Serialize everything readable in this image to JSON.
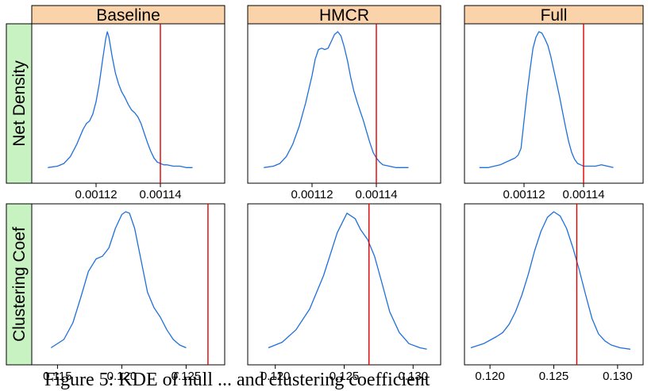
{
  "caption": "Figure 5: KDE of null ... and clustering coefficient",
  "colors": {
    "curve": "#1f6fdc",
    "observed": "#e00000",
    "strip": "#fbd3aa",
    "row_strip": "#c9f2c2",
    "frame": "#000000"
  },
  "chart_data": [
    {
      "type": "line",
      "column": "Baseline",
      "row": "Net Density",
      "xlim": [
        0.0011,
        0.00116
      ],
      "ylim": [
        0,
        1
      ],
      "xticks": [
        0.00112,
        0.00114
      ],
      "xtick_labels": [
        "0.00112",
        "0.00114"
      ],
      "observed": 0.00114,
      "x": [
        0.001105,
        0.001108,
        0.00111,
        0.001112,
        0.001114,
        0.001116,
        0.001117,
        0.001118,
        0.001119,
        0.00112,
        0.001121,
        0.001122,
        0.001123,
        0.0011235,
        0.001124,
        0.001125,
        0.001126,
        0.001127,
        0.001128,
        0.001129,
        0.00113,
        0.001131,
        0.001132,
        0.001133,
        0.001134,
        0.001135,
        0.001136,
        0.001137,
        0.001138,
        0.001139,
        0.00114,
        0.001141,
        0.001142,
        0.001144,
        0.001146,
        0.001148,
        0.00115
      ],
      "y": [
        0.01,
        0.02,
        0.04,
        0.09,
        0.18,
        0.29,
        0.33,
        0.35,
        0.4,
        0.49,
        0.62,
        0.79,
        0.95,
        1.0,
        0.96,
        0.82,
        0.7,
        0.62,
        0.56,
        0.52,
        0.47,
        0.43,
        0.41,
        0.38,
        0.33,
        0.26,
        0.19,
        0.13,
        0.08,
        0.05,
        0.04,
        0.03,
        0.03,
        0.02,
        0.02,
        0.01,
        0.01
      ]
    },
    {
      "type": "line",
      "column": "HMCR",
      "row": "Net Density",
      "xlim": [
        0.0011,
        0.00116
      ],
      "ylim": [
        0,
        1
      ],
      "xticks": [
        0.00112,
        0.00114
      ],
      "xtick_labels": [
        "0.00112",
        "0.00114"
      ],
      "observed": 0.00114,
      "x": [
        0.001105,
        0.001108,
        0.00111,
        0.001112,
        0.001114,
        0.001116,
        0.001118,
        0.00112,
        0.001121,
        0.001122,
        0.001123,
        0.001124,
        0.001125,
        0.001126,
        0.001127,
        0.001128,
        0.001129,
        0.00113,
        0.001131,
        0.001132,
        0.001133,
        0.001134,
        0.001135,
        0.001136,
        0.001137,
        0.001138,
        0.001139,
        0.00114,
        0.001141,
        0.001142,
        0.001144,
        0.001146,
        0.001148,
        0.00115
      ],
      "y": [
        0.01,
        0.02,
        0.04,
        0.09,
        0.18,
        0.31,
        0.48,
        0.68,
        0.8,
        0.87,
        0.88,
        0.87,
        0.88,
        0.93,
        0.98,
        1.0,
        0.97,
        0.89,
        0.79,
        0.67,
        0.57,
        0.49,
        0.42,
        0.35,
        0.27,
        0.19,
        0.12,
        0.08,
        0.05,
        0.03,
        0.02,
        0.01,
        0.01,
        0.01
      ]
    },
    {
      "type": "line",
      "column": "Full",
      "row": "Net Density",
      "xlim": [
        0.0011,
        0.00116
      ],
      "ylim": [
        0,
        1
      ],
      "xticks": [
        0.00112,
        0.00114
      ],
      "xtick_labels": [
        "0.00112",
        "0.00114"
      ],
      "observed": 0.00114,
      "x": [
        0.001105,
        0.001108,
        0.00111,
        0.001112,
        0.001114,
        0.001116,
        0.001117,
        0.001118,
        0.001119,
        0.00112,
        0.001121,
        0.001122,
        0.001123,
        0.001124,
        0.001125,
        0.001126,
        0.001127,
        0.001128,
        0.001129,
        0.00113,
        0.001131,
        0.001132,
        0.001133,
        0.001134,
        0.001135,
        0.001136,
        0.001137,
        0.001138,
        0.001139,
        0.00114,
        0.001141,
        0.001142,
        0.001144,
        0.001146,
        0.001148,
        0.00115
      ],
      "y": [
        0.01,
        0.01,
        0.02,
        0.03,
        0.05,
        0.07,
        0.08,
        0.1,
        0.15,
        0.35,
        0.55,
        0.72,
        0.88,
        0.96,
        1.0,
        0.99,
        0.95,
        0.9,
        0.82,
        0.72,
        0.62,
        0.52,
        0.41,
        0.3,
        0.2,
        0.12,
        0.07,
        0.04,
        0.03,
        0.02,
        0.02,
        0.02,
        0.02,
        0.03,
        0.02,
        0.01
      ]
    },
    {
      "type": "line",
      "column": "Baseline",
      "row": "Clustering Coef",
      "xlim": [
        0.113,
        0.128
      ],
      "ylim": [
        0,
        1
      ],
      "xticks": [
        0.115,
        0.12,
        0.125
      ],
      "xtick_labels": [
        "0.115",
        "0.120",
        "0.125"
      ],
      "observed": 0.1267,
      "x": [
        0.1145,
        0.1155,
        0.1162,
        0.1168,
        0.1174,
        0.118,
        0.1185,
        0.119,
        0.1195,
        0.12,
        0.1203,
        0.1206,
        0.121,
        0.1215,
        0.122,
        0.1225,
        0.123,
        0.1235,
        0.124,
        0.1245,
        0.125
      ],
      "y": [
        0.02,
        0.08,
        0.2,
        0.38,
        0.57,
        0.66,
        0.68,
        0.74,
        0.88,
        0.98,
        1.0,
        0.99,
        0.88,
        0.65,
        0.42,
        0.31,
        0.24,
        0.15,
        0.08,
        0.04,
        0.02
      ]
    },
    {
      "type": "line",
      "column": "HMCR",
      "row": "Clustering Coef",
      "xlim": [
        0.118,
        0.132
      ],
      "ylim": [
        0,
        1
      ],
      "xticks": [
        0.12,
        0.125,
        0.13
      ],
      "xtick_labels": [
        "0.120",
        "0.125",
        "0.130"
      ],
      "observed": 0.1268,
      "x": [
        0.1195,
        0.1205,
        0.1215,
        0.1225,
        0.1235,
        0.1245,
        0.1252,
        0.1258,
        0.1262,
        0.1267,
        0.1272,
        0.1277,
        0.1283,
        0.129,
        0.1297,
        0.1305,
        0.131
      ],
      "y": [
        0.02,
        0.06,
        0.15,
        0.3,
        0.54,
        0.85,
        0.99,
        0.95,
        0.87,
        0.8,
        0.68,
        0.5,
        0.28,
        0.13,
        0.05,
        0.02,
        0.01
      ]
    },
    {
      "type": "line",
      "column": "Full",
      "row": "Clustering Coef",
      "xlim": [
        0.118,
        0.132
      ],
      "ylim": [
        0,
        1
      ],
      "xticks": [
        0.12,
        0.125,
        0.13
      ],
      "xtick_labels": [
        "0.120",
        "0.125",
        "0.130"
      ],
      "observed": 0.1268,
      "x": [
        0.1185,
        0.1195,
        0.1205,
        0.121,
        0.1215,
        0.122,
        0.1225,
        0.123,
        0.1235,
        0.124,
        0.1245,
        0.125,
        0.1255,
        0.126,
        0.1265,
        0.127,
        0.1275,
        0.128,
        0.1285,
        0.129,
        0.1295,
        0.1302,
        0.131
      ],
      "y": [
        0.02,
        0.05,
        0.1,
        0.13,
        0.19,
        0.28,
        0.4,
        0.55,
        0.72,
        0.86,
        0.96,
        1.0,
        0.97,
        0.88,
        0.74,
        0.58,
        0.4,
        0.23,
        0.12,
        0.07,
        0.04,
        0.02,
        0.01
      ]
    }
  ],
  "columns": [
    "Baseline",
    "HMCR",
    "Full"
  ],
  "rows": [
    "Net Density",
    "Clustering Coef"
  ]
}
